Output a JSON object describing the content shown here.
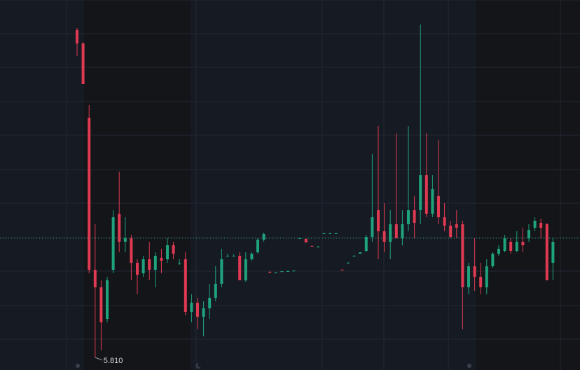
{
  "chart_data": {
    "type": "candlestick",
    "up_color": "#1fa37c",
    "down_color": "#e03a52",
    "ylim": [
      5.792,
      6.32
    ],
    "price_line": 5.98,
    "low_label": "5.810",
    "open": [
      6.277,
      6.258,
      6.152,
      5.935,
      5.91,
      5.865,
      5.935,
      6.015,
      5.975,
      5.98,
      5.945,
      5.93,
      5.95,
      5.935,
      5.952,
      5.95,
      5.97,
      5.945,
      5.95,
      5.875,
      5.888,
      5.868,
      5.88,
      5.895,
      5.915,
      5.955,
      5.955,
      5.955,
      5.92,
      5.95,
      5.96,
      5.978,
      5.932,
      5.931,
      5.932,
      5.933,
      5.933,
      5.98,
      5.979,
      5.969,
      5.968,
      5.987,
      5.987,
      5.987,
      5.935,
      5.945,
      5.955,
      5.958,
      5.962,
      5.982,
      6.02,
      5.99,
      5.975,
      6.0,
      5.98,
      6.0,
      6.02,
      6.02,
      6.07,
      6.015,
      6.04,
      6.01,
      5.998,
      6.0,
      6.0,
      5.91,
      5.94,
      5.925,
      5.91,
      5.94,
      5.958,
      5.962,
      5.975,
      5.962,
      5.975,
      5.98,
      5.995,
      6.002,
      6.0,
      5.945
    ],
    "high": [
      6.28,
      6.26,
      6.17,
      6.0,
      5.92,
      5.925,
      6.02,
      6.075,
      6.01,
      5.985,
      5.95,
      5.955,
      5.975,
      5.96,
      5.965,
      5.98,
      5.975,
      5.95,
      5.96,
      5.9,
      5.895,
      5.89,
      5.915,
      5.94,
      5.965,
      5.958,
      5.957,
      5.96,
      5.96,
      5.96,
      5.98,
      5.988,
      5.933,
      5.932,
      5.933,
      5.934,
      5.934,
      5.981,
      5.98,
      5.97,
      5.969,
      5.988,
      5.988,
      5.988,
      5.936,
      5.946,
      5.956,
      5.96,
      5.985,
      6.1,
      6.14,
      6.03,
      6.02,
      6.13,
      6.02,
      6.14,
      6.04,
      6.285,
      6.13,
      6.07,
      6.12,
      6.03,
      6.005,
      6.02,
      6.005,
      5.945,
      5.98,
      5.945,
      5.95,
      5.96,
      5.97,
      5.985,
      5.98,
      5.99,
      5.995,
      6.0,
      6.01,
      6.008,
      6.002,
      5.98
    ],
    "low": [
      6.24,
      6.2,
      5.93,
      5.81,
      5.82,
      5.86,
      5.93,
      5.96,
      5.96,
      5.92,
      5.9,
      5.925,
      5.92,
      5.91,
      5.93,
      5.945,
      5.95,
      5.942,
      5.87,
      5.86,
      5.85,
      5.84,
      5.865,
      5.89,
      5.91,
      5.954,
      5.954,
      5.92,
      5.918,
      5.948,
      5.958,
      5.975,
      5.93,
      5.93,
      5.931,
      5.932,
      5.932,
      5.979,
      5.974,
      5.968,
      5.967,
      5.986,
      5.986,
      5.986,
      5.934,
      5.944,
      5.954,
      5.958,
      5.96,
      5.975,
      5.95,
      5.96,
      5.95,
      5.98,
      5.97,
      5.99,
      5.98,
      6.0,
      6.01,
      6.01,
      6.0,
      5.99,
      5.98,
      5.98,
      5.85,
      5.9,
      5.905,
      5.9,
      5.9,
      5.938,
      5.955,
      5.96,
      5.958,
      5.96,
      5.96,
      5.975,
      5.99,
      5.98,
      5.92,
      5.92
    ],
    "close": [
      6.258,
      6.2,
      5.935,
      5.91,
      5.86,
      5.92,
      6.01,
      5.975,
      5.98,
      5.945,
      5.928,
      5.95,
      5.935,
      5.955,
      5.948,
      5.97,
      5.958,
      5.945,
      5.875,
      5.888,
      5.868,
      5.88,
      5.895,
      5.915,
      5.95,
      5.955,
      5.955,
      5.92,
      5.95,
      5.958,
      5.978,
      5.986,
      5.931,
      5.931,
      5.933,
      5.933,
      5.934,
      5.98,
      5.974,
      5.968,
      5.968,
      5.987,
      5.987,
      5.987,
      5.934,
      5.945,
      5.955,
      5.96,
      5.982,
      6.01,
      5.99,
      5.975,
      6.0,
      5.98,
      6.0,
      6.02,
      6.002,
      6.07,
      6.015,
      6.05,
      6.01,
      5.998,
      5.982,
      5.995,
      5.91,
      5.94,
      5.925,
      5.91,
      5.94,
      5.958,
      5.965,
      5.98,
      5.962,
      5.975,
      5.97,
      5.992,
      6.005,
      5.995,
      5.92,
      5.975
    ]
  }
}
